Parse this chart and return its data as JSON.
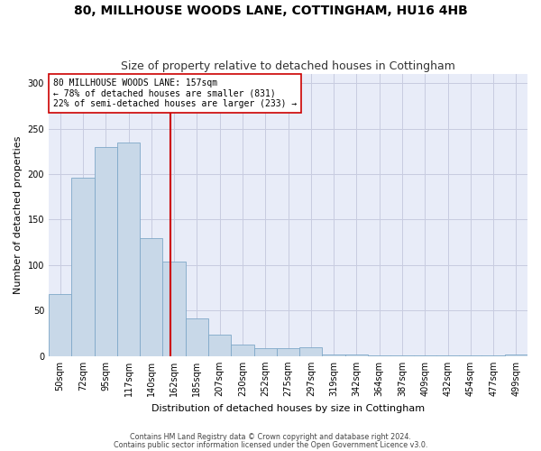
{
  "title": "80, MILLHOUSE WOODS LANE, COTTINGHAM, HU16 4HB",
  "subtitle": "Size of property relative to detached houses in Cottingham",
  "xlabel": "Distribution of detached houses by size in Cottingham",
  "ylabel": "Number of detached properties",
  "bar_color": "#c8d8e8",
  "bar_edge_color": "#7fa8c8",
  "categories": [
    "50sqm",
    "72sqm",
    "95sqm",
    "117sqm",
    "140sqm",
    "162sqm",
    "185sqm",
    "207sqm",
    "230sqm",
    "252sqm",
    "275sqm",
    "297sqm",
    "319sqm",
    "342sqm",
    "364sqm",
    "387sqm",
    "409sqm",
    "432sqm",
    "454sqm",
    "477sqm",
    "499sqm"
  ],
  "values": [
    68,
    196,
    230,
    235,
    130,
    104,
    41,
    24,
    13,
    9,
    9,
    10,
    2,
    2,
    1,
    1,
    1,
    1,
    1,
    1,
    2
  ],
  "vline_x": 4.82,
  "vline_color": "#cc0000",
  "annotation_text": "80 MILLHOUSE WOODS LANE: 157sqm\n← 78% of detached houses are smaller (831)\n22% of semi-detached houses are larger (233) →",
  "annotation_box_color": "#ffffff",
  "annotation_box_edge": "#cc0000",
  "ylim": [
    0,
    310
  ],
  "yticks": [
    0,
    50,
    100,
    150,
    200,
    250,
    300
  ],
  "grid_color": "#c8cce0",
  "background_color": "#e8ecf8",
  "footer1": "Contains HM Land Registry data © Crown copyright and database right 2024.",
  "footer2": "Contains public sector information licensed under the Open Government Licence v3.0.",
  "title_fontsize": 10,
  "subtitle_fontsize": 9,
  "ann_fontsize": 7.0,
  "xlabel_fontsize": 8,
  "ylabel_fontsize": 8,
  "tick_fontsize": 7
}
